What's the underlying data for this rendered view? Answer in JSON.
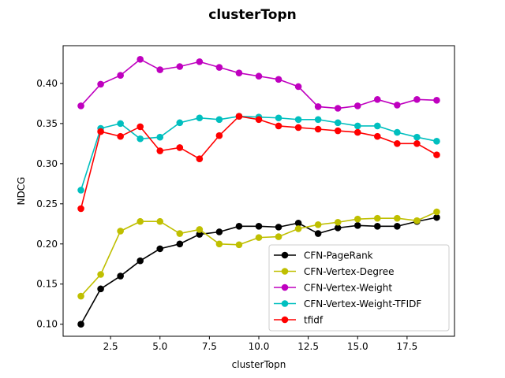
{
  "chart_data": {
    "type": "line",
    "title": "clusterTopn",
    "xlabel": "clusterTopn",
    "ylabel": "NDCG",
    "xlim": [
      0.1,
      19.9
    ],
    "ylim": [
      0.085,
      0.447
    ],
    "xticks": [
      2.5,
      5.0,
      7.5,
      10.0,
      12.5,
      15.0,
      17.5
    ],
    "xtick_labels": [
      "2.5",
      "5.0",
      "7.5",
      "10.0",
      "12.5",
      "15.0",
      "17.5"
    ],
    "yticks": [
      0.1,
      0.15,
      0.2,
      0.25,
      0.3,
      0.35,
      0.4
    ],
    "ytick_labels": [
      "0.10",
      "0.15",
      "0.20",
      "0.25",
      "0.30",
      "0.35",
      "0.40"
    ],
    "grid": false,
    "legend_position": "lower-right",
    "x": [
      1,
      2,
      3,
      4,
      5,
      6,
      7,
      8,
      9,
      10,
      11,
      12,
      13,
      14,
      15,
      16,
      17,
      18,
      19
    ],
    "series": [
      {
        "name": "CFN-PageRank",
        "color": "#000000",
        "values": [
          0.1,
          0.144,
          0.16,
          0.179,
          0.194,
          0.2,
          0.212,
          0.215,
          0.222,
          0.222,
          0.221,
          0.226,
          0.213,
          0.22,
          0.223,
          0.222,
          0.222,
          0.228,
          0.233
        ]
      },
      {
        "name": "CFN-Vertex-Degree",
        "color": "#bfbf00",
        "values": [
          0.135,
          0.162,
          0.216,
          0.228,
          0.228,
          0.213,
          0.218,
          0.2,
          0.199,
          0.208,
          0.209,
          0.219,
          0.224,
          0.227,
          0.231,
          0.232,
          0.232,
          0.229,
          0.24
        ]
      },
      {
        "name": "CFN-Vertex-Weight",
        "color": "#bf00bf",
        "values": [
          0.372,
          0.399,
          0.41,
          0.43,
          0.417,
          0.421,
          0.427,
          0.42,
          0.413,
          0.409,
          0.405,
          0.396,
          0.371,
          0.369,
          0.372,
          0.38,
          0.373,
          0.38,
          0.379
        ]
      },
      {
        "name": "CFN-Vertex-Weight-TFIDF",
        "color": "#00bfbf",
        "values": [
          0.267,
          0.344,
          0.35,
          0.331,
          0.333,
          0.351,
          0.357,
          0.355,
          0.359,
          0.358,
          0.357,
          0.355,
          0.355,
          0.351,
          0.347,
          0.347,
          0.339,
          0.333,
          0.328
        ]
      },
      {
        "name": "tfidf",
        "color": "#ff0000",
        "values": [
          0.244,
          0.34,
          0.334,
          0.346,
          0.316,
          0.32,
          0.306,
          0.335,
          0.359,
          0.355,
          0.347,
          0.345,
          0.343,
          0.341,
          0.339,
          0.334,
          0.325,
          0.325,
          0.311
        ]
      }
    ]
  }
}
